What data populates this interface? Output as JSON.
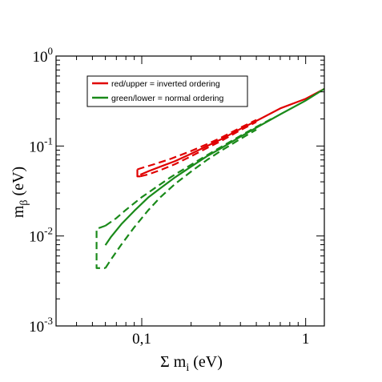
{
  "chart_data": {
    "type": "line",
    "title": "",
    "xscale": "log",
    "yscale": "log",
    "xlim": [
      0.03,
      1.3
    ],
    "ylim": [
      0.001,
      1
    ],
    "grid": false,
    "legend_position": "top-left",
    "x_axis": {
      "label_main": "Σ m",
      "label_sub": "i",
      "label_unit": "(eV)",
      "ticks": [
        {
          "value": 0.1,
          "label": "0,1"
        },
        {
          "value": 1,
          "label": "1"
        }
      ]
    },
    "y_axis": {
      "label_main": "m",
      "label_sub": "β",
      "label_unit": "(eV)",
      "ticks": [
        {
          "value": 0.001,
          "base": "10",
          "exp": "-3"
        },
        {
          "value": 0.01,
          "base": "10",
          "exp": "-2"
        },
        {
          "value": 0.1,
          "base": "10",
          "exp": "-1"
        },
        {
          "value": 1,
          "base": "10",
          "exp": "0"
        }
      ]
    },
    "legend": [
      {
        "text": "red/upper = inverted ordering",
        "color": "#e00000"
      },
      {
        "text": "green/lower = normal ordering",
        "color": "#1a8a1a"
      }
    ],
    "series": [
      {
        "color": "#e00000",
        "dash": "solid",
        "x": [
          0.098,
          0.11,
          0.13,
          0.16,
          0.2,
          0.25,
          0.3,
          0.4,
          0.5,
          0.7,
          1.0,
          1.3
        ],
        "y": [
          0.048,
          0.0525,
          0.059,
          0.068,
          0.082,
          0.1,
          0.117,
          0.155,
          0.19,
          0.262,
          0.335,
          0.432
        ]
      },
      {
        "color": "#e00000",
        "dash": "dashed",
        "x": [
          0.094,
          0.1,
          0.12,
          0.15,
          0.2,
          0.25,
          0.3,
          0.4,
          0.5
        ],
        "y": [
          0.055,
          0.057,
          0.063,
          0.072,
          0.088,
          0.105,
          0.122,
          0.16,
          0.195
        ]
      },
      {
        "color": "#e00000",
        "dash": "dashed",
        "x": [
          0.098,
          0.11,
          0.13,
          0.16,
          0.2,
          0.25,
          0.3,
          0.4,
          0.5
        ],
        "y": [
          0.046,
          0.0485,
          0.054,
          0.063,
          0.077,
          0.095,
          0.112,
          0.15,
          0.185
        ]
      },
      {
        "color": "#e00000",
        "dash": "solid",
        "x": [
          0.094,
          0.094,
          0.098
        ],
        "y": [
          0.055,
          0.046,
          0.046
        ]
      },
      {
        "color": "#1a8a1a",
        "dash": "solid",
        "x": [
          0.06,
          0.065,
          0.075,
          0.09,
          0.11,
          0.13,
          0.16,
          0.2,
          0.25,
          0.3,
          0.4,
          0.5,
          0.7,
          1.0,
          1.3
        ],
        "y": [
          0.0079,
          0.0098,
          0.0135,
          0.019,
          0.027,
          0.034,
          0.045,
          0.059,
          0.077,
          0.093,
          0.127,
          0.16,
          0.225,
          0.32,
          0.432
        ]
      },
      {
        "color": "#1a8a1a",
        "dash": "dashed",
        "x": [
          0.06,
          0.07,
          0.08,
          0.1,
          0.12,
          0.15,
          0.2,
          0.25,
          0.3,
          0.4,
          0.5,
          0.65
        ],
        "y": [
          0.013,
          0.0158,
          0.0195,
          0.027,
          0.034,
          0.045,
          0.062,
          0.079,
          0.096,
          0.13,
          0.163,
          0.21
        ]
      },
      {
        "color": "#1a8a1a",
        "dash": "dashed",
        "x": [
          0.06,
          0.065,
          0.075,
          0.09,
          0.11,
          0.13,
          0.16,
          0.2,
          0.25,
          0.3,
          0.4,
          0.5
        ],
        "y": [
          0.0044,
          0.0055,
          0.008,
          0.0125,
          0.0195,
          0.027,
          0.038,
          0.052,
          0.07,
          0.087,
          0.12,
          0.152
        ]
      },
      {
        "color": "#1a8a1a",
        "dash": "dashed",
        "x": [
          0.06,
          0.053,
          0.053,
          0.06
        ],
        "y": [
          0.013,
          0.012,
          0.0044,
          0.0044
        ]
      }
    ]
  }
}
